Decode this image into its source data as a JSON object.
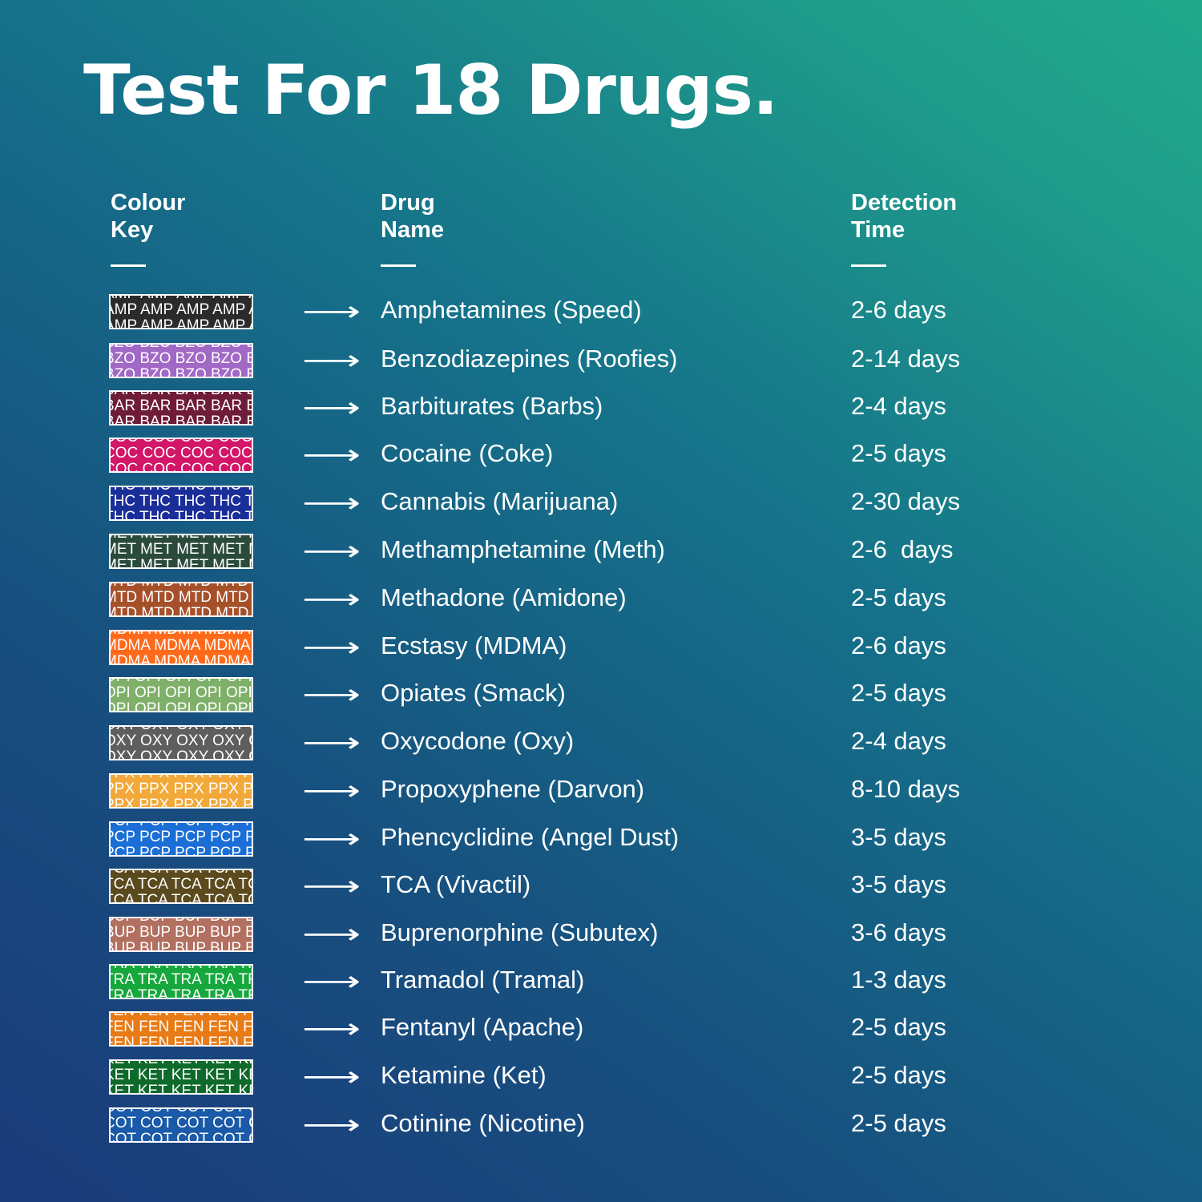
{
  "title": "Test For 18 Drugs.",
  "headers": {
    "key": [
      "Colour",
      "Key"
    ],
    "drug": [
      "Drug",
      "Name"
    ],
    "time": [
      "Detection",
      "Time"
    ]
  },
  "arrow": "⟶",
  "rows": [
    {
      "code": "AMP",
      "color": "#2b2b2b",
      "drug": "Amphetamines (Speed)",
      "time": "2-6 days"
    },
    {
      "code": "BZO",
      "color": "#a168c6",
      "drug": "Benzodiazepines (Roofies)",
      "time": "2-14 days"
    },
    {
      "code": "BAR",
      "color": "#6e1c3a",
      "drug": "Barbiturates (Barbs)",
      "time": "2-4 days"
    },
    {
      "code": "COC",
      "color": "#d21668",
      "drug": "Cocaine (Coke)",
      "time": "2-5 days"
    },
    {
      "code": "THC",
      "color": "#1a2e9a",
      "drug": "Cannabis (Marijuana)",
      "time": "2-30 days"
    },
    {
      "code": "MET",
      "color": "#2a4a3c",
      "drug": "Methamphetamine (Meth)",
      "time": "2-6  days"
    },
    {
      "code": "MTD",
      "color": "#a6502a",
      "drug": "Methadone (Amidone)",
      "time": "2-5 days"
    },
    {
      "code": "MDMA",
      "color": "#ff6a1a",
      "drug": "Ecstasy (MDMA)",
      "time": "2-6 days"
    },
    {
      "code": "OPI",
      "color": "#7fb06a",
      "drug": "Opiates (Smack)",
      "time": "2-5 days"
    },
    {
      "code": "OXY",
      "color": "#5e5e5e",
      "drug": "Oxycodone (Oxy)",
      "time": "2-4 days"
    },
    {
      "code": "PPX",
      "color": "#f2a93a",
      "drug": "Propoxyphene (Darvon)",
      "time": "8-10 days"
    },
    {
      "code": "PCP",
      "color": "#1a6ed6",
      "drug": "Phencyclidine (Angel Dust)",
      "time": "3-5 days"
    },
    {
      "code": "TCA",
      "color": "#5a4a1e",
      "drug": "TCA (Vivactil)",
      "time": "3-5 days"
    },
    {
      "code": "BUP",
      "color": "#b27060",
      "drug": "Buprenorphine (Subutex)",
      "time": "3-6 days"
    },
    {
      "code": "TRA",
      "color": "#16a83c",
      "drug": "Tramadol (Tramal)",
      "time": "1-3 days"
    },
    {
      "code": "FEN",
      "color": "#e97b16",
      "drug": "Fentanyl (Apache)",
      "time": "2-5 days"
    },
    {
      "code": "KET",
      "color": "#0e6a2a",
      "drug": "Ketamine (Ket)",
      "time": "2-5 days"
    },
    {
      "code": "COT",
      "color": "#1a5aa8",
      "drug": "Cotinine (Nicotine)",
      "time": "2-5 days"
    }
  ]
}
